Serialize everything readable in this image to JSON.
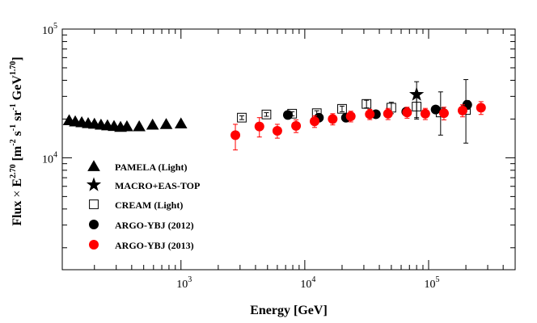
{
  "chart_data": {
    "type": "scatter",
    "xscale": "log",
    "yscale": "log",
    "xlim": [
      110,
      500000
    ],
    "ylim": [
      1350,
      100000
    ],
    "xlabel": "Energy [GeV]",
    "ylabel": {
      "flux": "Flux",
      "times": "×",
      "E": "E",
      "E_exp": "2.70",
      "unit_open": "[m",
      "m_exp": "-2",
      "s": "s",
      "s_exp": "-1",
      "sr": "sr",
      "sr_exp": "-1",
      "GeV": "GeV",
      "GeV_exp": "1.70",
      "unit_close": "]"
    },
    "x_tick_labels": [
      {
        "base": "10",
        "exp": "3",
        "value": 1000
      },
      {
        "base": "10",
        "exp": "4",
        "value": 10000
      },
      {
        "base": "10",
        "exp": "5",
        "value": 100000
      }
    ],
    "y_tick_labels": [
      {
        "base": "10",
        "exp": "4",
        "value": 10000
      },
      {
        "base": "10",
        "exp": "5",
        "value": 100000
      }
    ],
    "series": [
      {
        "name": "PAMELA (Light)",
        "marker": "triangle",
        "color": "#000000",
        "points": [
          {
            "x": 125,
            "y": 19500
          },
          {
            "x": 140,
            "y": 19100
          },
          {
            "x": 158,
            "y": 18800
          },
          {
            "x": 178,
            "y": 18500
          },
          {
            "x": 200,
            "y": 18300
          },
          {
            "x": 226,
            "y": 18000
          },
          {
            "x": 255,
            "y": 17800
          },
          {
            "x": 288,
            "y": 17600
          },
          {
            "x": 325,
            "y": 17300
          },
          {
            "x": 366,
            "y": 17500
          },
          {
            "x": 460,
            "y": 17500
          },
          {
            "x": 590,
            "y": 18000
          },
          {
            "x": 760,
            "y": 18200
          },
          {
            "x": 1000,
            "y": 18400
          }
        ]
      },
      {
        "name": "MACRO+EAS-TOP",
        "marker": "star",
        "color": "#000000",
        "points": [
          {
            "x": 80000,
            "y": 31000,
            "err_low": 11000,
            "err_high": 8000
          }
        ]
      },
      {
        "name": "CREAM (Light)",
        "marker": "open-square",
        "color": "#000000",
        "points": [
          {
            "x": 3100,
            "y": 20500,
            "err_low": 700,
            "err_high": 700
          },
          {
            "x": 4900,
            "y": 21700,
            "err_low": 700,
            "err_high": 700
          },
          {
            "x": 7900,
            "y": 22000,
            "err_low": 800,
            "err_high": 800
          },
          {
            "x": 12500,
            "y": 22200,
            "err_low": 1000,
            "err_high": 1000
          },
          {
            "x": 20000,
            "y": 24000,
            "err_low": 1200,
            "err_high": 1200
          },
          {
            "x": 31500,
            "y": 26200,
            "err_low": 1800,
            "err_high": 1800
          },
          {
            "x": 50000,
            "y": 24500,
            "err_low": 2500,
            "err_high": 2500
          },
          {
            "x": 80000,
            "y": 25000,
            "err_low": 4500,
            "err_high": 4500
          },
          {
            "x": 125000,
            "y": 22500,
            "err_low": 7500,
            "err_high": 10000
          },
          {
            "x": 200000,
            "y": 23500,
            "err_low": 10500,
            "err_high": 17000
          }
        ]
      },
      {
        "name": "ARGO-YBJ (2012)",
        "marker": "filled-circle",
        "color": "#000000",
        "points": [
          {
            "x": 7300,
            "y": 21500,
            "err_low": 1400,
            "err_high": 1400
          },
          {
            "x": 13000,
            "y": 20500,
            "err_low": 1200,
            "err_high": 1200
          },
          {
            "x": 21500,
            "y": 20500,
            "err_low": 1200,
            "err_high": 1200
          },
          {
            "x": 37500,
            "y": 21800,
            "err_low": 1300,
            "err_high": 1300
          },
          {
            "x": 66000,
            "y": 22800,
            "err_low": 1400,
            "err_high": 1400
          },
          {
            "x": 114000,
            "y": 23700,
            "err_low": 1500,
            "err_high": 1500
          },
          {
            "x": 205000,
            "y": 25800,
            "err_low": 2000,
            "err_high": 2000
          }
        ]
      },
      {
        "name": "ARGO-YBJ (2013)",
        "marker": "filled-circle",
        "color": "#ff0000",
        "points": [
          {
            "x": 2750,
            "y": 15000,
            "err_low": 3500,
            "err_high": 3200
          },
          {
            "x": 4300,
            "y": 17500,
            "err_low": 3000,
            "err_high": 3000
          },
          {
            "x": 6000,
            "y": 16200,
            "err_low": 2000,
            "err_high": 2000
          },
          {
            "x": 8500,
            "y": 17700,
            "err_low": 2000,
            "err_high": 2000
          },
          {
            "x": 12000,
            "y": 19200,
            "err_low": 2000,
            "err_high": 2000
          },
          {
            "x": 16800,
            "y": 20000,
            "err_low": 2000,
            "err_high": 2000
          },
          {
            "x": 23500,
            "y": 21000,
            "err_low": 2000,
            "err_high": 2000
          },
          {
            "x": 33500,
            "y": 21800,
            "err_low": 2000,
            "err_high": 2000
          },
          {
            "x": 47000,
            "y": 22000,
            "err_low": 2200,
            "err_high": 2200
          },
          {
            "x": 67000,
            "y": 22500,
            "err_low": 2200,
            "err_high": 2200
          },
          {
            "x": 94000,
            "y": 22000,
            "err_low": 2200,
            "err_high": 2200
          },
          {
            "x": 133000,
            "y": 22200,
            "err_low": 2500,
            "err_high": 2500
          },
          {
            "x": 188000,
            "y": 23300,
            "err_low": 2500,
            "err_high": 2500
          },
          {
            "x": 265000,
            "y": 24500,
            "err_low": 2800,
            "err_high": 2800
          }
        ]
      }
    ],
    "legend": {
      "placement": "lower-left",
      "entries": [
        {
          "label": "PAMELA (Light)",
          "marker": "triangle",
          "color": "#000000"
        },
        {
          "label": "MACRO+EAS-TOP",
          "marker": "star",
          "color": "#000000"
        },
        {
          "label": "CREAM (Light)",
          "marker": "open-square",
          "color": "#000000"
        },
        {
          "label": "ARGO-YBJ (2012)",
          "marker": "filled-circle",
          "color": "#000000"
        },
        {
          "label": "ARGO-YBJ (2013)",
          "marker": "filled-circle",
          "color": "#ff0000"
        }
      ]
    }
  }
}
